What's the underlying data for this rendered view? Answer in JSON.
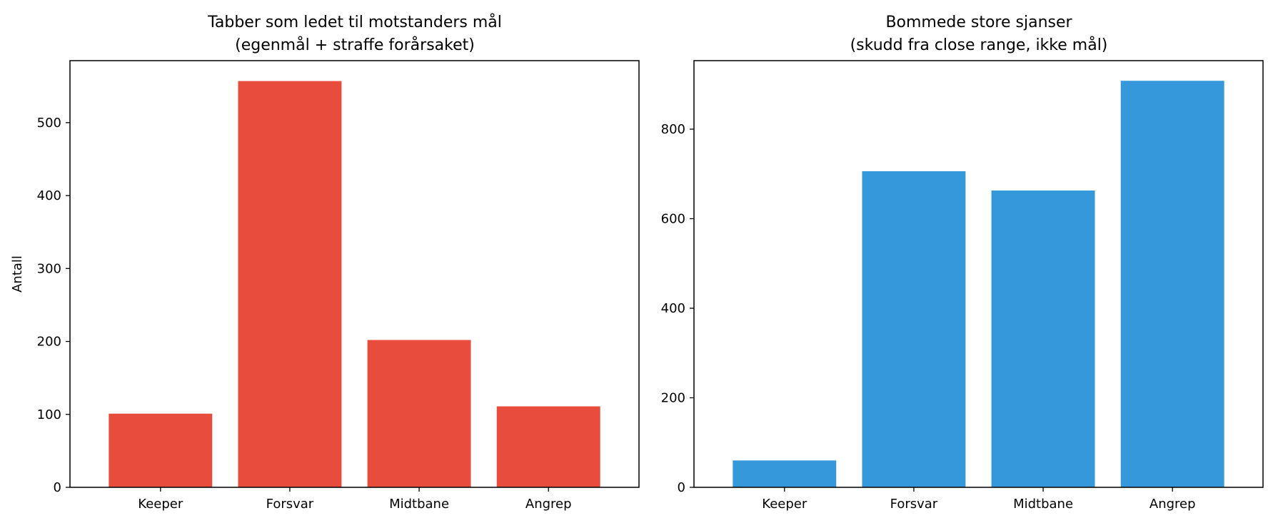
{
  "chart_data": [
    {
      "type": "bar",
      "title": [
        "Tabber som ledet til motstanders mål",
        "(egenmål + straffe forårsaket)"
      ],
      "xlabel": "",
      "ylabel": "Antall",
      "categories": [
        "Keeper",
        "Forsvar",
        "Midtbane",
        "Angrep"
      ],
      "values": [
        101,
        557,
        202,
        111
      ],
      "ylim": [
        0,
        585
      ],
      "yticks": [
        0,
        100,
        200,
        300,
        400,
        500
      ],
      "color": "#e74c3c",
      "grid": false
    },
    {
      "type": "bar",
      "title": [
        "Bommede store sjanser",
        "(skudd fra close range, ikke mål)"
      ],
      "xlabel": "",
      "ylabel": "",
      "categories": [
        "Keeper",
        "Forsvar",
        "Midtbane",
        "Angrep"
      ],
      "values": [
        60,
        706,
        663,
        908
      ],
      "ylim": [
        0,
        953
      ],
      "yticks": [
        0,
        200,
        400,
        600,
        800
      ],
      "color": "#3498db",
      "grid": false
    }
  ]
}
